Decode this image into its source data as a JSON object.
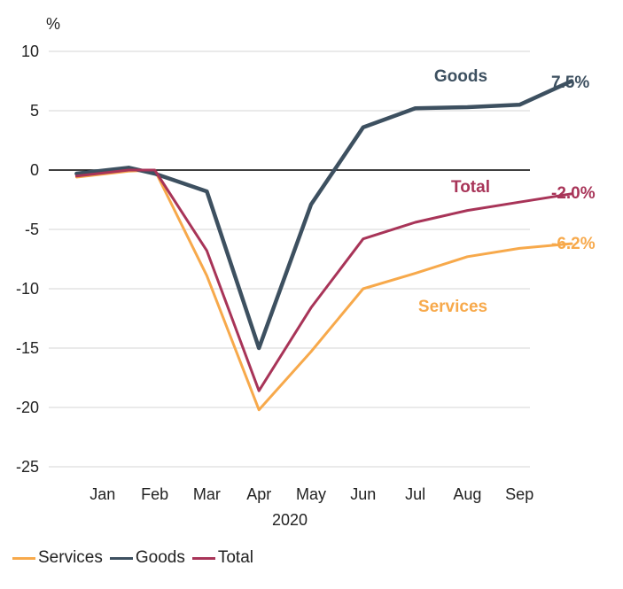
{
  "chart_data": {
    "type": "line",
    "unit_label": "%",
    "year_label": "2020",
    "categories": [
      "Jan",
      "Feb",
      "Mar",
      "Apr",
      "May",
      "Jun",
      "Jul",
      "Aug",
      "Sep"
    ],
    "y_ticks": [
      10,
      5,
      0,
      -5,
      -10,
      -15,
      -20,
      -25
    ],
    "ylim": [
      -25,
      10
    ],
    "series": [
      {
        "name": "Services",
        "color": "#F7A94B",
        "x": [
          0.5,
          1.5,
          2.0,
          3.0,
          4.0,
          5.0,
          6.0,
          7.0,
          8.0,
          9.0,
          10.0
        ],
        "values": [
          -0.6,
          -0.1,
          0.0,
          -8.9,
          -20.2,
          -15.3,
          -10.0,
          -8.7,
          -7.3,
          -6.6,
          -6.2
        ],
        "end_label": "-6.2%"
      },
      {
        "name": "Goods",
        "color": "#3D5060",
        "x": [
          0.5,
          1.5,
          2.0,
          3.0,
          4.0,
          5.0,
          6.0,
          7.0,
          8.0,
          9.0,
          10.0
        ],
        "values": [
          -0.3,
          0.2,
          -0.3,
          -1.8,
          -15.0,
          -2.9,
          3.6,
          5.2,
          5.3,
          5.5,
          7.5
        ],
        "end_label": "7.5%"
      },
      {
        "name": "Total",
        "color": "#A83458",
        "x": [
          0.5,
          1.5,
          2.0,
          3.0,
          4.0,
          5.0,
          6.0,
          7.0,
          8.0,
          9.0,
          10.0
        ],
        "values": [
          -0.5,
          0.0,
          0.0,
          -6.8,
          -18.6,
          -11.6,
          -5.8,
          -4.4,
          -3.4,
          -2.7,
          -2.0
        ],
        "end_label": "-2.0%"
      }
    ],
    "grid": true,
    "legend": "bottom-left"
  }
}
